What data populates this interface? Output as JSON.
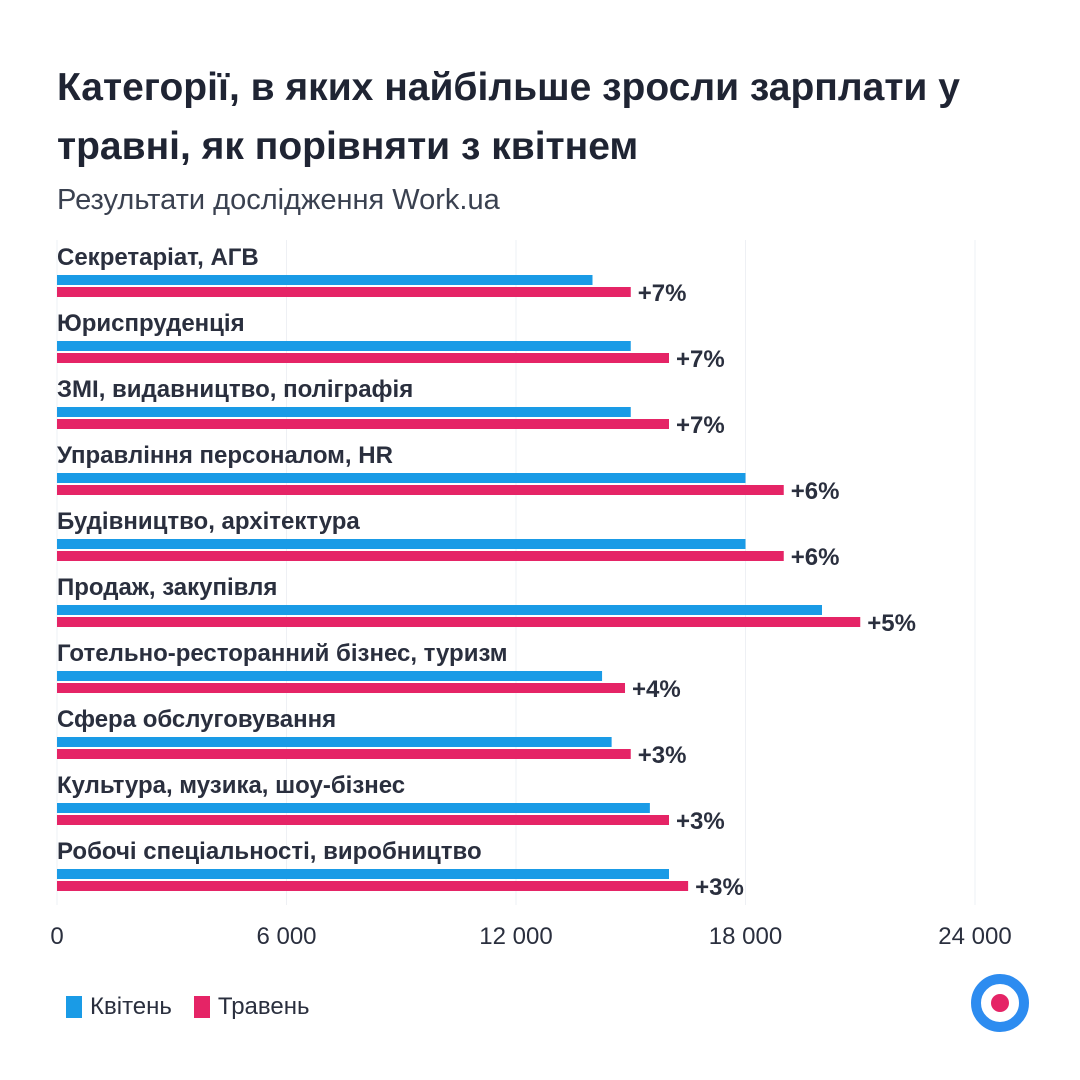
{
  "title": "Категорії, в яких найбільше зросли зарплати у травні, як порівняти з квітнем",
  "subtitle": "Результати дослідження Work.ua",
  "colors": {
    "april": "#1a9be6",
    "may": "#e52466",
    "text": "#2a2f3e",
    "grid": "#eef0f4"
  },
  "chart_data": {
    "type": "bar",
    "orientation": "horizontal",
    "categories": [
      "Секретаріат, АГВ",
      "Юриспруденція",
      "ЗМІ, видавництво, поліграфія",
      "Управління персоналом, HR",
      "Будівництво, архітектура",
      "Продаж, закупівля",
      "Готельно-ресторанний бізнес, туризм",
      "Сфера обслуговування",
      "Культура, музика, шоу-бізнес",
      "Робочі спеціальності, виробництво"
    ],
    "series": [
      {
        "name": "Квітень",
        "values": [
          14000,
          15000,
          15000,
          18000,
          18000,
          20000,
          14250,
          14500,
          15500,
          16000
        ]
      },
      {
        "name": "Травень",
        "values": [
          15000,
          16000,
          16000,
          19000,
          19000,
          21000,
          14850,
          15000,
          16000,
          16500
        ]
      }
    ],
    "annotations": [
      "+7%",
      "+7%",
      "+7%",
      "+6%",
      "+6%",
      "+5%",
      "+4%",
      "+3%",
      "+3%",
      "+3%"
    ],
    "xticks": [
      0,
      6000,
      12000,
      18000,
      24000
    ],
    "xtick_labels": [
      "0",
      "6 000",
      "12 000",
      "18 000",
      "24 000"
    ],
    "xlim": [
      0,
      24000
    ],
    "grid": true,
    "legend": "bottom-left"
  },
  "legend": {
    "april": "Квітень",
    "may": "Травень"
  }
}
